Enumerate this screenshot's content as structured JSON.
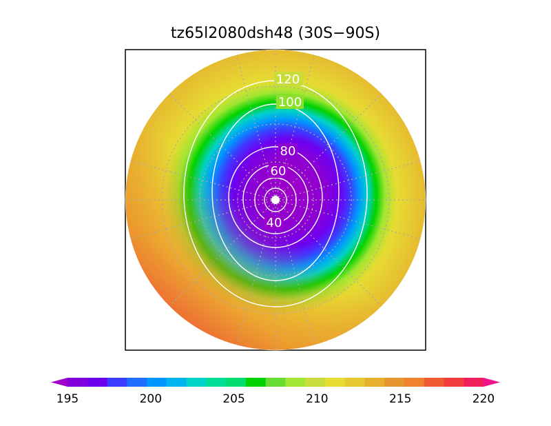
{
  "title": "tz65l2080dsh48 (30S−90S)",
  "map": {
    "projection": "south polar stereographic",
    "latitude_range": "30S-90S",
    "field_range": [
      195,
      220
    ],
    "contour_labels": [
      "120",
      "100",
      "80",
      "60",
      "40"
    ],
    "contour_line_color": "#ffffff",
    "graticule_color": "#a8a8a8"
  },
  "colorbar": {
    "tick_labels": [
      "195",
      "200",
      "205",
      "210",
      "215",
      "220"
    ],
    "colors": [
      "#a000c8",
      "#8200dc",
      "#6e00f0",
      "#3c3cff",
      "#1e6eff",
      "#0096ff",
      "#00b4f0",
      "#00d2c8",
      "#00dc96",
      "#00dc6e",
      "#00d200",
      "#64dc32",
      "#a0e632",
      "#c8dc3c",
      "#e6dc32",
      "#e6c832",
      "#e6af2d",
      "#e6962d",
      "#f0822d",
      "#f05a32",
      "#f03c3c",
      "#f01e5a",
      "#f0148c"
    ]
  }
}
